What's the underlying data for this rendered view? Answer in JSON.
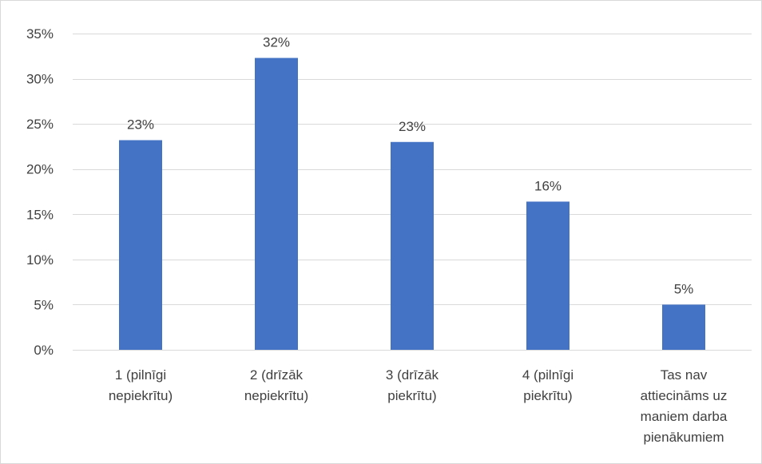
{
  "chart_data": {
    "type": "bar",
    "title": "",
    "xlabel": "",
    "ylabel": "",
    "categories": [
      [
        "1 (pilnīgi",
        "nepiekrītu)"
      ],
      [
        "2 (drīzāk",
        "nepiekrītu)"
      ],
      [
        "3 (drīzāk",
        "piekrītu)"
      ],
      [
        "4 (pilnīgi",
        "piekrītu)"
      ],
      [
        "Tas nav",
        "attiecināms uz",
        "maniem darba",
        "pienākumiem"
      ]
    ],
    "values": [
      23.2,
      32.3,
      23.0,
      16.4,
      5.0
    ],
    "data_labels": [
      "23%",
      "32%",
      "23%",
      "16%",
      "5%"
    ],
    "ylim": [
      0,
      35
    ],
    "yticks": [
      0,
      5,
      10,
      15,
      20,
      25,
      30,
      35
    ],
    "ytick_labels": [
      "0%",
      "5%",
      "10%",
      "15%",
      "20%",
      "25%",
      "30%",
      "35%"
    ],
    "grid": true,
    "legend": "none",
    "bar_color": "#4472c4"
  }
}
